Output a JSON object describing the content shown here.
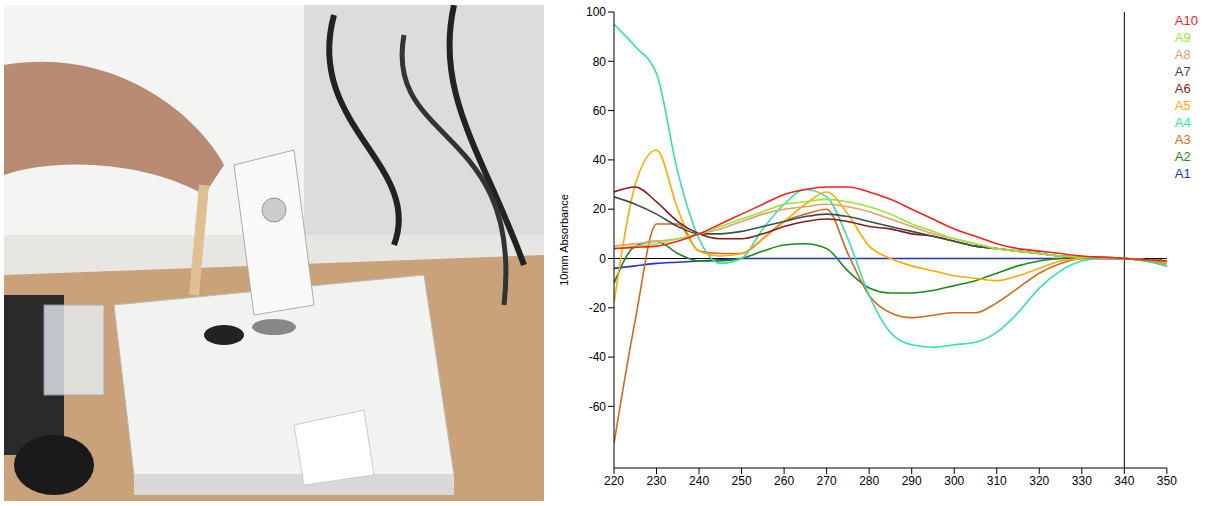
{
  "chart_data": {
    "type": "line",
    "y_label": "10mm Absorbance",
    "x": [
      220,
      225,
      230,
      235,
      240,
      245,
      250,
      255,
      260,
      265,
      270,
      275,
      280,
      285,
      290,
      295,
      300,
      305,
      310,
      315,
      320,
      325,
      330,
      335,
      340,
      345,
      350
    ],
    "xlim": [
      220,
      350
    ],
    "xticks": [
      220,
      230,
      240,
      250,
      260,
      270,
      280,
      290,
      300,
      310,
      320,
      330,
      340,
      350
    ],
    "ylim": [
      -85,
      100
    ],
    "yticks": [
      -60,
      -40,
      -20,
      0,
      20,
      40,
      60,
      80,
      100
    ],
    "grid": false,
    "legend": "right",
    "baseline": 0,
    "cursor_x": 340,
    "series": [
      {
        "name": "A1",
        "color": "#2233cc",
        "values": [
          -4,
          -3,
          -2,
          -1.5,
          -1,
          -0.5,
          0,
          0,
          0,
          0,
          0,
          0,
          0,
          0,
          0,
          0,
          0,
          0,
          0,
          0,
          0,
          0,
          0,
          0,
          0,
          -0.5,
          -1
        ]
      },
      {
        "name": "A2",
        "color": "#1a8a1a",
        "values": [
          -10,
          5,
          7,
          2,
          -1,
          -1,
          0,
          3,
          5.5,
          6,
          4,
          -5,
          -12,
          -14,
          -14,
          -13,
          -11,
          -9,
          -6,
          -3,
          -1,
          0,
          0.5,
          0.5,
          0,
          -1,
          -3
        ]
      },
      {
        "name": "A3",
        "color": "#d2691e",
        "values": [
          -75,
          -25,
          14,
          14,
          3,
          2,
          2,
          8,
          15,
          18,
          20,
          2,
          -15,
          -22,
          -24,
          -23,
          -22,
          -22,
          -18,
          -12,
          -6,
          -2,
          0,
          0.5,
          0,
          -1,
          -2
        ]
      },
      {
        "name": "A4",
        "color": "#33e0b0",
        "values": [
          95,
          86,
          75,
          35,
          8,
          -2,
          0,
          12,
          22,
          28,
          25,
          8,
          -15,
          -30,
          -35,
          -36,
          -35,
          -34,
          -30,
          -22,
          -12,
          -5,
          -1,
          0,
          0,
          -1,
          -3
        ]
      },
      {
        "name": "A5",
        "color": "#ffaa00",
        "values": [
          -18,
          30,
          44,
          20,
          3,
          1,
          2,
          8,
          15,
          22,
          27,
          18,
          5,
          0,
          -3,
          -5,
          -7,
          -8,
          -9,
          -7,
          -4,
          -1,
          0,
          0.5,
          0,
          -0.5,
          -2
        ]
      },
      {
        "name": "A6",
        "color": "#8b1a1a",
        "values": [
          27,
          29,
          23,
          15,
          10,
          8,
          8,
          10,
          13,
          15,
          16,
          15,
          13,
          12,
          10,
          9,
          7,
          5,
          4,
          3,
          2,
          1,
          0.5,
          0,
          0,
          -0.5,
          -1
        ]
      },
      {
        "name": "A7",
        "color": "#3a4f4f",
        "values": [
          25,
          22,
          18,
          13,
          10,
          10,
          11,
          13,
          15,
          17,
          18,
          17,
          15,
          13,
          11,
          9,
          7,
          5,
          4,
          3,
          2,
          1,
          0.5,
          0.2,
          0,
          -0.5,
          -1
        ]
      },
      {
        "name": "A8",
        "color": "#e0a070",
        "values": [
          5,
          6,
          7,
          8,
          10,
          12,
          15,
          18,
          20,
          21,
          22,
          21,
          19,
          16,
          13,
          10,
          8,
          6,
          4,
          3,
          2,
          1,
          0.5,
          0.2,
          0,
          -0.5,
          -1
        ]
      },
      {
        "name": "A9",
        "color": "#99e633",
        "values": [
          4,
          5,
          6,
          8,
          10,
          13,
          16,
          19,
          22,
          23,
          24,
          23,
          21,
          18,
          14,
          11,
          8,
          6,
          4,
          3,
          2,
          1,
          0.5,
          0.2,
          0,
          -0.5,
          -1
        ]
      },
      {
        "name": "A10",
        "color": "#ee2222",
        "values": [
          4,
          4.5,
          5,
          7,
          10,
          14,
          18,
          22,
          26,
          28,
          29,
          29,
          27,
          24,
          20,
          16,
          12,
          9,
          6,
          4,
          3,
          2,
          1,
          0.5,
          0,
          -0.5,
          -1
        ]
      }
    ]
  }
}
